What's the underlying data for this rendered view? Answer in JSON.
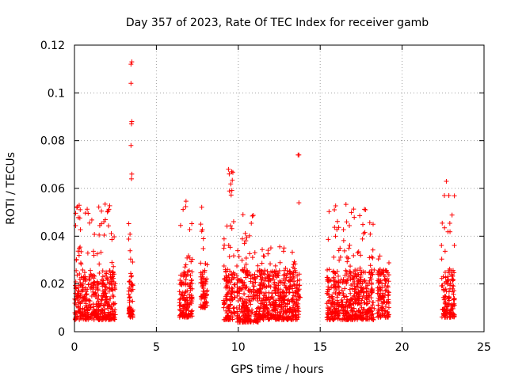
{
  "chart_data": {
    "type": "scatter",
    "title": "Day 357 of 2023, Rate Of TEC Index for receiver gamb",
    "xlabel": "GPS time / hours",
    "ylabel": "ROTI / TECUs",
    "xlim": [
      0,
      25
    ],
    "ylim": [
      0,
      0.12
    ],
    "x_ticks": [
      "0",
      "5",
      "10",
      "15",
      "20",
      "25"
    ],
    "y_ticks": [
      "0",
      "0.02",
      "0.04",
      "0.06",
      "0.08",
      "0.1",
      "0.12"
    ],
    "grid": true,
    "marker": "plus",
    "color": "#ff0000",
    "clusters": [
      {
        "x": [
          0.0,
          2.5
        ],
        "y": [
          0.005,
          0.054
        ]
      },
      {
        "x": [
          3.3,
          3.6
        ],
        "y": [
          0.006,
          0.046
        ]
      },
      {
        "x": [
          6.4,
          7.2
        ],
        "y": [
          0.006,
          0.059
        ]
      },
      {
        "x": [
          7.7,
          8.1
        ],
        "y": [
          0.01,
          0.053
        ]
      },
      {
        "x": [
          9.1,
          9.8
        ],
        "y": [
          0.005,
          0.068
        ]
      },
      {
        "x": [
          9.9,
          11.3
        ],
        "y": [
          0.004,
          0.05
        ]
      },
      {
        "x": [
          11.3,
          13.8
        ],
        "y": [
          0.005,
          0.036
        ]
      },
      {
        "x": [
          15.4,
          18.3
        ],
        "y": [
          0.005,
          0.054
        ]
      },
      {
        "x": [
          18.5,
          19.2
        ],
        "y": [
          0.006,
          0.039
        ]
      },
      {
        "x": [
          22.4,
          23.2
        ],
        "y": [
          0.006,
          0.063
        ]
      }
    ],
    "points": [
      {
        "x": 3.5,
        "y": 0.113
      },
      {
        "x": 3.45,
        "y": 0.112
      },
      {
        "x": 3.45,
        "y": 0.104
      },
      {
        "x": 3.5,
        "y": 0.088
      },
      {
        "x": 3.48,
        "y": 0.087
      },
      {
        "x": 3.45,
        "y": 0.078
      },
      {
        "x": 3.5,
        "y": 0.066
      },
      {
        "x": 3.48,
        "y": 0.064
      },
      {
        "x": 13.65,
        "y": 0.074
      },
      {
        "x": 13.7,
        "y": 0.074
      },
      {
        "x": 13.7,
        "y": 0.054
      },
      {
        "x": 9.4,
        "y": 0.068
      },
      {
        "x": 9.6,
        "y": 0.067
      },
      {
        "x": 22.7,
        "y": 0.063
      }
    ]
  }
}
